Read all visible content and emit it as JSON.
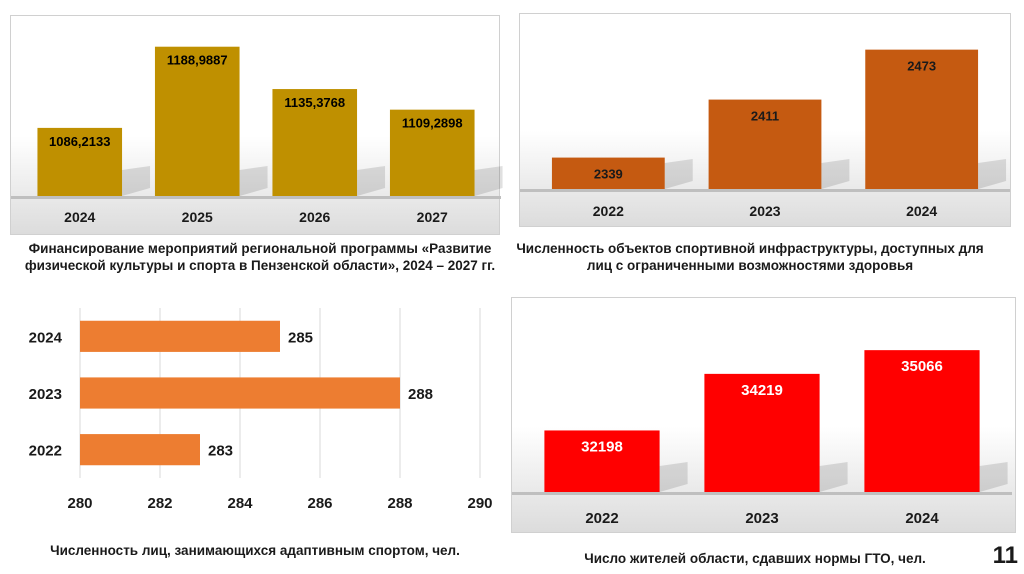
{
  "chart_data": [
    {
      "type": "bar",
      "orientation": "vertical",
      "categories": [
        "2024",
        "2025",
        "2026",
        "2027"
      ],
      "values": [
        1086.2133,
        1188.9887,
        1135.3768,
        1109.2898
      ],
      "value_labels": [
        "1086,2133",
        "1188,9887",
        "1135,3768",
        "1109,2898"
      ],
      "caption": "Финансирование мероприятий региональной программы «Развитие физической культуры и спорта в Пензенской области», 2024 – 2027 гг.",
      "ylim": [
        1000,
        1200
      ],
      "grid": false,
      "color": "#bf9000"
    },
    {
      "type": "bar",
      "orientation": "vertical",
      "categories": [
        "2022",
        "2023",
        "2024"
      ],
      "values": [
        2339,
        2411,
        2473
      ],
      "value_labels": [
        "2339",
        "2411",
        "2473"
      ],
      "caption": "Численность объектов спортивной инфраструктуры, доступных для лиц с ограниченными возможностями здоровья",
      "ylim": [
        2300,
        2480
      ],
      "grid": false,
      "color": "#c55a11"
    },
    {
      "type": "bar",
      "orientation": "horizontal",
      "categories": [
        "2024",
        "2023",
        "2022"
      ],
      "values": [
        285,
        288,
        283
      ],
      "value_labels": [
        "285",
        "288",
        "283"
      ],
      "caption": "Численность лиц, занимающихся адаптивным спортом, чел.",
      "xlim": [
        280,
        290
      ],
      "xticks": [
        "280",
        "282",
        "284",
        "286",
        "288",
        "290"
      ],
      "grid": true,
      "color": "#ed7d31"
    },
    {
      "type": "bar",
      "orientation": "vertical",
      "categories": [
        "2022",
        "2023",
        "2024"
      ],
      "values": [
        32198,
        34219,
        35066
      ],
      "value_labels": [
        "32198",
        "34219",
        "35066"
      ],
      "caption": "Число жителей области, сдавших нормы ГТО, чел.",
      "ylim": [
        30000,
        35500
      ],
      "grid": false,
      "color": "#ff0000"
    }
  ],
  "page_number": "11"
}
